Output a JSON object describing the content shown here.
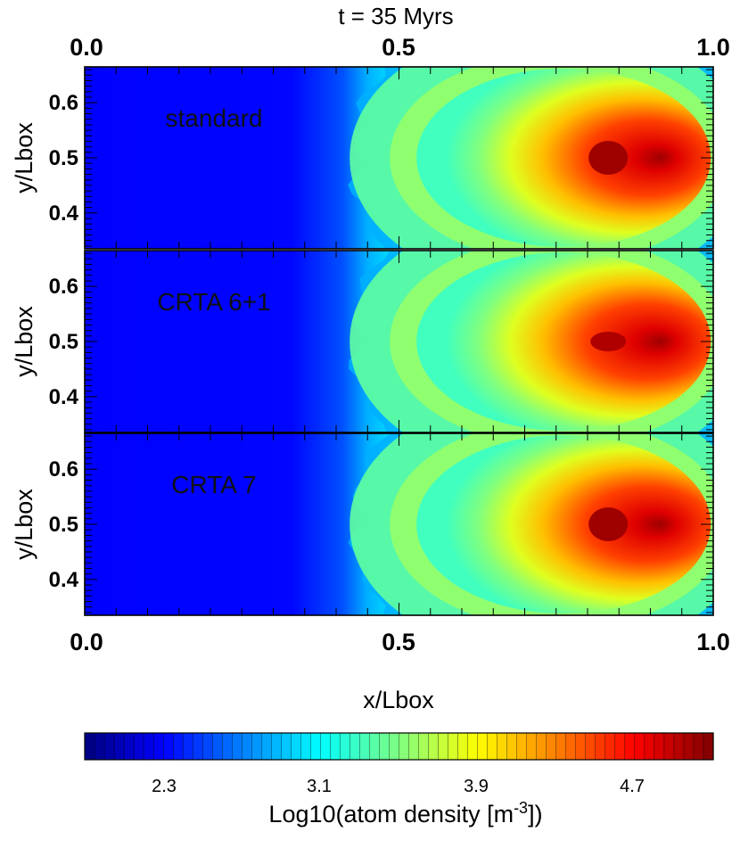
{
  "chart_data": {
    "type": "heatmap",
    "title": "t = 35 Myrs",
    "xlabel": "x/Lbox",
    "ylabel": "y/Lbox",
    "xlim": [
      0.0,
      1.0
    ],
    "ylim": [
      0.335,
      0.665
    ],
    "x_ticks": [
      "0.0",
      "0.5",
      "1.0"
    ],
    "y_ticks": [
      "0.6",
      "0.5",
      "0.4"
    ],
    "panels": [
      {
        "label": "standard",
        "core_value": 5.0
      },
      {
        "label": "CRTA 6+1",
        "core_value": 4.95
      },
      {
        "label": "CRTA 7",
        "core_value": 5.0
      }
    ],
    "colorbar": {
      "label": "Log10(atom density [m",
      "label_exponent": "-3",
      "label_suffix": "])",
      "range": [
        1.9,
        5.1
      ],
      "ticks": [
        "2.3",
        "3.1",
        "3.9",
        "4.7"
      ],
      "colormap": "jet"
    },
    "field": {
      "background": 2.3,
      "front_x": 0.47,
      "peak_center_x": 0.84,
      "peak_center_y": 0.5,
      "peak_value": 5.0
    }
  }
}
